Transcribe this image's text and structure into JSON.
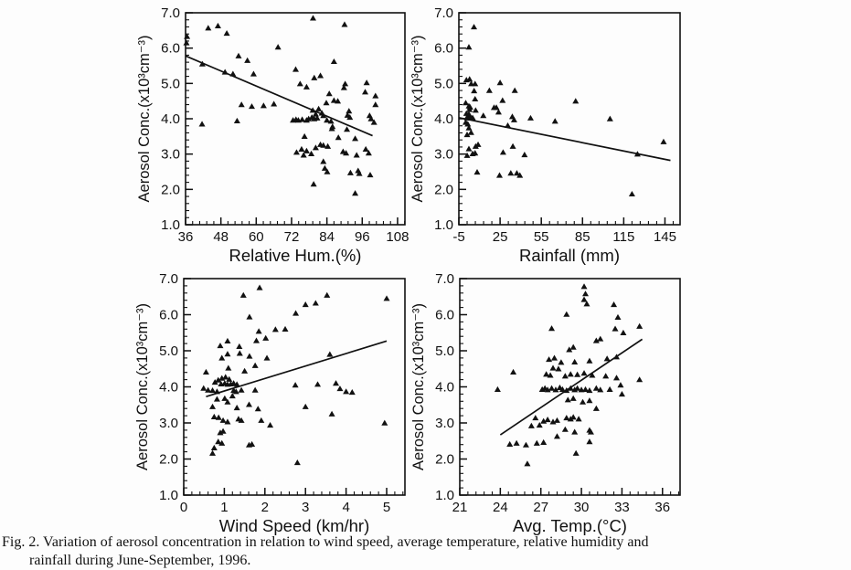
{
  "figure": {
    "caption_line1": "Fig. 2. Variation of aerosol concentration in relation to wind speed, average temperature, relative humidity and",
    "caption_line2": "rainfall during June-September, 1996."
  },
  "colors": {
    "ink": "#111111",
    "background": "#fdfdfd"
  },
  "chart_data": [
    {
      "id": "relative-humidity",
      "type": "scatter",
      "xlabel": "Relative Hum.(%)",
      "ylabel": "Aerosol Conc.(x10³cm⁻³)",
      "xlim": [
        36,
        110.5
      ],
      "ylim": [
        1,
        7
      ],
      "xticks": [
        36,
        48,
        60,
        72,
        84,
        96,
        108
      ],
      "x_minor_step": 2.4,
      "yticks": [
        1,
        2,
        3,
        4,
        5,
        6,
        7
      ],
      "y_minor_step": 0.2,
      "marker": "filled-triangle",
      "trend_line": {
        "x1": 36,
        "y1": 5.78,
        "x2": 99.5,
        "y2": 3.52
      },
      "points": [
        [
          36.5,
          6.33
        ],
        [
          36.3,
          6.15
        ],
        [
          43.7,
          6.57
        ],
        [
          47,
          6.63
        ],
        [
          50,
          6.42
        ],
        [
          67.4,
          6.03
        ],
        [
          79.3,
          6.85
        ],
        [
          90,
          6.67
        ],
        [
          41.7,
          5.55
        ],
        [
          54,
          5.78
        ],
        [
          57,
          5.65
        ],
        [
          49.4,
          5.32
        ],
        [
          52.1,
          5.27
        ],
        [
          59.1,
          5.27
        ],
        [
          55,
          4.4
        ],
        [
          58.5,
          4.35
        ],
        [
          62.5,
          4.37
        ],
        [
          66,
          4.42
        ],
        [
          53.5,
          3.94
        ],
        [
          41.6,
          3.85
        ],
        [
          86.4,
          5.62
        ],
        [
          73.4,
          5.4
        ],
        [
          79.7,
          5.16
        ],
        [
          81.8,
          5.22
        ],
        [
          74.9,
          4.99
        ],
        [
          77.1,
          4.9
        ],
        [
          90.2,
          4.99
        ],
        [
          89.8,
          4.88
        ],
        [
          97.5,
          5.02
        ],
        [
          97,
          4.76
        ],
        [
          84.8,
          4.71
        ],
        [
          86.4,
          4.52
        ],
        [
          87.7,
          4.5
        ],
        [
          83.8,
          4.45
        ],
        [
          81.2,
          4.28
        ],
        [
          79.2,
          4.24
        ],
        [
          80.2,
          4.13
        ],
        [
          82.3,
          4.16
        ],
        [
          82.8,
          4.09
        ],
        [
          78.9,
          4.04
        ],
        [
          79.7,
          4.0
        ],
        [
          80.7,
          4.02
        ],
        [
          77.8,
          4.0
        ],
        [
          77.1,
          3.96
        ],
        [
          75.6,
          3.98
        ],
        [
          74.3,
          3.96
        ],
        [
          73.5,
          3.98
        ],
        [
          72.5,
          3.96
        ],
        [
          84,
          3.96
        ],
        [
          85.4,
          3.93
        ],
        [
          91.5,
          4.22
        ],
        [
          91,
          4.1
        ],
        [
          91.8,
          4.04
        ],
        [
          98.5,
          4.09
        ],
        [
          99,
          4.0
        ],
        [
          85.9,
          3.78
        ],
        [
          85.7,
          3.72
        ],
        [
          90.8,
          3.7
        ],
        [
          76.4,
          3.5
        ],
        [
          87.9,
          3.47
        ],
        [
          93.6,
          3.44
        ],
        [
          81.8,
          3.27
        ],
        [
          82.8,
          3.25
        ],
        [
          80.2,
          3.18
        ],
        [
          84.3,
          3.22
        ],
        [
          75.4,
          3.14
        ],
        [
          77.1,
          3.09
        ],
        [
          73.7,
          3.05
        ],
        [
          76.1,
          2.97
        ],
        [
          78.7,
          3.01
        ],
        [
          89.5,
          3.07
        ],
        [
          90.5,
          3.03
        ],
        [
          94.1,
          2.97
        ],
        [
          97.2,
          3.14
        ],
        [
          98.2,
          3.03
        ],
        [
          82.8,
          2.79
        ],
        [
          83.3,
          2.6
        ],
        [
          84.1,
          2.5
        ],
        [
          94.6,
          2.53
        ],
        [
          100.5,
          4.65
        ],
        [
          100.5,
          4.4
        ],
        [
          100,
          3.9
        ],
        [
          79.5,
          2.15
        ],
        [
          93.6,
          1.89
        ],
        [
          95,
          2.45
        ],
        [
          98.7,
          2.41
        ],
        [
          92,
          2.47
        ]
      ]
    },
    {
      "id": "rainfall",
      "type": "scatter",
      "xlabel": "Rainfall (mm)",
      "ylabel": "Aerosol Conc.(x10³cm⁻³)",
      "xlim": [
        -5,
        156
      ],
      "ylim": [
        1,
        7
      ],
      "xticks": [
        -5,
        25,
        55,
        85,
        115,
        145
      ],
      "x_minor_step": 6,
      "yticks": [
        1,
        2,
        3,
        4,
        5,
        6,
        7
      ],
      "y_minor_step": 0.2,
      "marker": "filled-triangle",
      "trend_line": {
        "x1": -5,
        "y1": 4.03,
        "x2": 149,
        "y2": 2.82
      },
      "points": [
        [
          6,
          6.6
        ],
        [
          2.3,
          6.03
        ],
        [
          0.5,
          5.1
        ],
        [
          2.8,
          5.12
        ],
        [
          4,
          4.99
        ],
        [
          6.8,
          4.99
        ],
        [
          25,
          5.02
        ],
        [
          6.1,
          4.79
        ],
        [
          17.2,
          4.8
        ],
        [
          35.7,
          4.8
        ],
        [
          6.8,
          4.56
        ],
        [
          26.8,
          4.52
        ],
        [
          2.3,
          4.36
        ],
        [
          3.2,
          4.33
        ],
        [
          20.6,
          4.32
        ],
        [
          22.3,
          4.32
        ],
        [
          2.8,
          4.26
        ],
        [
          23.9,
          4.19
        ],
        [
          7.2,
          4.24
        ],
        [
          2.3,
          4.13
        ],
        [
          1.7,
          4.09
        ],
        [
          3.2,
          4.07
        ],
        [
          1,
          4.02
        ],
        [
          3.9,
          4.02
        ],
        [
          5,
          4.03
        ],
        [
          12.8,
          4.09
        ],
        [
          33.9,
          4.06
        ],
        [
          35.2,
          3.97
        ],
        [
          47.2,
          4.02
        ],
        [
          0,
          4.45
        ],
        [
          0.5,
          4.15
        ],
        [
          0,
          3.9
        ],
        [
          1.5,
          3.85
        ],
        [
          30.6,
          3.81
        ],
        [
          2.3,
          3.74
        ],
        [
          1,
          3.55
        ],
        [
          3.9,
          3.61
        ],
        [
          2.3,
          3.15
        ],
        [
          7.2,
          3.22
        ],
        [
          9,
          3.27
        ],
        [
          5,
          3.01
        ],
        [
          6.8,
          3.03
        ],
        [
          1,
          2.96
        ],
        [
          27.2,
          3.05
        ],
        [
          34.3,
          3.22
        ],
        [
          42.8,
          2.98
        ],
        [
          8.3,
          2.49
        ],
        [
          24.6,
          2.4
        ],
        [
          32.8,
          2.46
        ],
        [
          37.2,
          2.46
        ],
        [
          39.4,
          2.4
        ],
        [
          65,
          3.93
        ],
        [
          80,
          4.5
        ],
        [
          105,
          4.0
        ],
        [
          125,
          3.0
        ],
        [
          144,
          3.35
        ],
        [
          121,
          1.87
        ]
      ]
    },
    {
      "id": "wind-speed",
      "type": "scatter",
      "xlabel": "Wind Speed (km/hr)",
      "ylabel": "Aerosol Conc.(x10³cm⁻³)",
      "xlim": [
        0,
        5.45
      ],
      "ylim": [
        1,
        7
      ],
      "xticks": [
        0,
        1,
        2,
        3,
        4,
        5
      ],
      "x_minor_step": 0.2,
      "yticks": [
        1,
        2,
        3,
        4,
        5,
        6,
        7
      ],
      "y_minor_step": 0.2,
      "marker": "filled-triangle",
      "trend_line": {
        "x1": 0.55,
        "y1": 3.73,
        "x2": 5.0,
        "y2": 5.27
      },
      "points": [
        [
          1.62,
          5.94
        ],
        [
          2.5,
          5.6
        ],
        [
          1.79,
          5.28
        ],
        [
          2.02,
          5.35
        ],
        [
          1.08,
          5.27
        ],
        [
          0.9,
          5.14
        ],
        [
          1.38,
          4.93
        ],
        [
          1.37,
          5.12
        ],
        [
          0.94,
          4.8
        ],
        [
          1.08,
          4.91
        ],
        [
          1.62,
          4.85
        ],
        [
          2.05,
          4.8
        ],
        [
          1.76,
          4.59
        ],
        [
          1.5,
          4.44
        ],
        [
          1.1,
          4.52
        ],
        [
          0.55,
          4.41
        ],
        [
          0.77,
          4.13
        ],
        [
          0.85,
          4.19
        ],
        [
          0.94,
          4.24
        ],
        [
          1.03,
          4.27
        ],
        [
          1.12,
          4.21
        ],
        [
          0.92,
          4.08
        ],
        [
          1.01,
          4.1
        ],
        [
          1.08,
          4.07
        ],
        [
          1.16,
          4.08
        ],
        [
          1.23,
          4.1
        ],
        [
          1.31,
          4.07
        ],
        [
          0.49,
          3.96
        ],
        [
          0.6,
          3.91
        ],
        [
          0.71,
          3.9
        ],
        [
          0.82,
          3.87
        ],
        [
          1.23,
          3.9
        ],
        [
          1.29,
          3.87
        ],
        [
          1.42,
          3.91
        ],
        [
          1.76,
          3.91
        ],
        [
          1.2,
          3.75
        ],
        [
          1.01,
          3.68
        ],
        [
          0.82,
          3.66
        ],
        [
          1.08,
          3.58
        ],
        [
          1.31,
          3.42
        ],
        [
          0.71,
          3.45
        ],
        [
          0.86,
          3.15
        ],
        [
          0.75,
          3.17
        ],
        [
          0.97,
          3.07
        ],
        [
          1.08,
          3.03
        ],
        [
          1.35,
          3.11
        ],
        [
          1.42,
          3.07
        ],
        [
          1.61,
          3.51
        ],
        [
          1.83,
          3.39
        ],
        [
          1.91,
          3.07
        ],
        [
          2.13,
          2.94
        ],
        [
          0.9,
          2.73
        ],
        [
          0.97,
          2.77
        ],
        [
          0.85,
          2.48
        ],
        [
          0.94,
          2.44
        ],
        [
          0.75,
          2.31
        ],
        [
          1.61,
          2.39
        ],
        [
          1.68,
          2.41
        ],
        [
          0.71,
          2.16
        ],
        [
          1.47,
          6.54
        ],
        [
          1.87,
          6.75
        ],
        [
          1.85,
          5.54
        ],
        [
          2.26,
          5.59
        ],
        [
          2.76,
          6.04
        ],
        [
          3.0,
          6.28
        ],
        [
          3.25,
          6.32
        ],
        [
          3.53,
          6.54
        ],
        [
          5.0,
          6.45
        ],
        [
          3.6,
          4.9
        ],
        [
          2.75,
          4.05
        ],
        [
          3.3,
          4.07
        ],
        [
          3.75,
          4.1
        ],
        [
          3.85,
          3.95
        ],
        [
          4.0,
          3.87
        ],
        [
          4.15,
          3.85
        ],
        [
          3.0,
          3.45
        ],
        [
          3.65,
          3.25
        ],
        [
          4.95,
          3.0
        ],
        [
          2.8,
          1.9
        ]
      ]
    },
    {
      "id": "avg-temp",
      "type": "scatter",
      "xlabel": "Avg. Temp.(°C)",
      "ylabel": "Aerosol Conc.(x10³cm⁻³)",
      "xlim": [
        21,
        37.3
      ],
      "ylim": [
        1,
        7
      ],
      "xticks": [
        21,
        24,
        27,
        30,
        33,
        36
      ],
      "x_minor_step": 0.6,
      "yticks": [
        1,
        2,
        3,
        4,
        5,
        6,
        7
      ],
      "y_minor_step": 0.2,
      "marker": "filled-triangle",
      "trend_line": {
        "x1": 24.0,
        "y1": 2.67,
        "x2": 34.5,
        "y2": 5.32
      },
      "points": [
        [
          30.4,
          6.3
        ],
        [
          32.4,
          6.28
        ],
        [
          28.9,
          6.01
        ],
        [
          32.5,
          5.61
        ],
        [
          27.8,
          5.62
        ],
        [
          33.1,
          5.5
        ],
        [
          31.1,
          5.28
        ],
        [
          31.4,
          5.33
        ],
        [
          29.1,
          5.03
        ],
        [
          29.4,
          5.1
        ],
        [
          28,
          4.8
        ],
        [
          27.6,
          4.76
        ],
        [
          28.5,
          4.68
        ],
        [
          29.5,
          4.69
        ],
        [
          30.6,
          4.72
        ],
        [
          31.9,
          4.78
        ],
        [
          32.6,
          4.83
        ],
        [
          24.96,
          4.41
        ],
        [
          23.8,
          3.93
        ],
        [
          27.4,
          4.35
        ],
        [
          27.7,
          4.32
        ],
        [
          28.8,
          4.3
        ],
        [
          29.2,
          4.35
        ],
        [
          29.7,
          4.34
        ],
        [
          30.2,
          4.38
        ],
        [
          30.8,
          4.32
        ],
        [
          31.8,
          4.3
        ],
        [
          32.6,
          4.25
        ],
        [
          27.1,
          3.93
        ],
        [
          27.3,
          3.96
        ],
        [
          27.5,
          3.92
        ],
        [
          27.8,
          3.96
        ],
        [
          28.1,
          3.92
        ],
        [
          28.4,
          3.98
        ],
        [
          28.6,
          3.93
        ],
        [
          28.9,
          3.9
        ],
        [
          29.2,
          3.96
        ],
        [
          29.5,
          3.92
        ],
        [
          29.7,
          3.96
        ],
        [
          30,
          3.92
        ],
        [
          30.3,
          3.93
        ],
        [
          30.6,
          3.9
        ],
        [
          31.1,
          3.96
        ],
        [
          31.4,
          3.92
        ],
        [
          32.1,
          3.93
        ],
        [
          29,
          3.64
        ],
        [
          29.4,
          3.68
        ],
        [
          30.1,
          3.58
        ],
        [
          30.6,
          3.62
        ],
        [
          26.6,
          3.14
        ],
        [
          27.2,
          3.05
        ],
        [
          27.5,
          3.09
        ],
        [
          27.9,
          3.03
        ],
        [
          28.2,
          3.07
        ],
        [
          28.9,
          3.14
        ],
        [
          29.2,
          3.11
        ],
        [
          29.4,
          3.16
        ],
        [
          29.8,
          3.11
        ],
        [
          26.3,
          2.92
        ],
        [
          26.9,
          2.94
        ],
        [
          28.8,
          2.82
        ],
        [
          29.5,
          2.75
        ],
        [
          30.6,
          2.8
        ],
        [
          30.7,
          2.75
        ],
        [
          28.2,
          2.63
        ],
        [
          30.6,
          2.48
        ],
        [
          24.7,
          2.41
        ],
        [
          25.2,
          2.44
        ],
        [
          25.9,
          2.39
        ],
        [
          26.7,
          2.44
        ],
        [
          27.2,
          2.46
        ],
        [
          29.6,
          2.16
        ],
        [
          26,
          1.87
        ],
        [
          30.2,
          6.78
        ],
        [
          30.3,
          6.58
        ],
        [
          30.2,
          6.42
        ],
        [
          32.7,
          5.93
        ],
        [
          34.3,
          5.68
        ],
        [
          34.3,
          4.2
        ],
        [
          32.9,
          4.05
        ],
        [
          33,
          3.8
        ],
        [
          31.1,
          3.4
        ],
        [
          27.9,
          4.52
        ],
        [
          28.3,
          4.5
        ]
      ]
    }
  ]
}
